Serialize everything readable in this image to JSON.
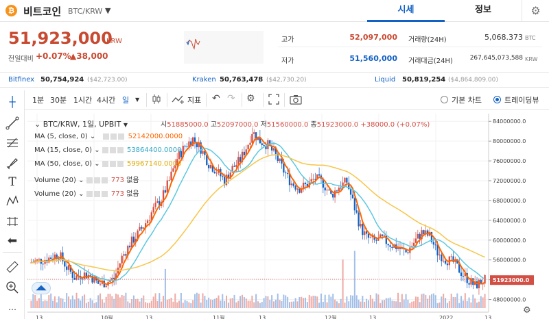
{
  "header": {
    "coin_logo": "₿",
    "coin_name": "비트코인",
    "coin_pair": "BTC/KRW",
    "caret_icon": "caret-down-icon",
    "tabs": [
      {
        "label": "시세"
      },
      {
        "label": "정보"
      }
    ],
    "settings_icon": "gear-icon"
  },
  "price": {
    "current": "51,923,000",
    "unit": "KRW",
    "change_label": "전일대비",
    "change_pct": "+0.07%",
    "change_amt": "▲38,000"
  },
  "stats": {
    "high_label": "고가",
    "high": "52,097,000",
    "low_label": "저가",
    "low": "51,560,000",
    "vol_label": "거래량(24H)",
    "vol": "5,068.373",
    "vol_unit": "BTC",
    "amt_label": "거래대금(24H)",
    "amt": "267,645,073,588",
    "amt_unit": "KRW"
  },
  "exchanges": [
    {
      "name": "Bitfinex",
      "value": "50,754,924",
      "usd": "($42,723.00)"
    },
    {
      "name": "Kraken",
      "value": "50,763,478",
      "usd": "($42,730.20)"
    },
    {
      "name": "Liquid",
      "value": "50,819,254",
      "usd": "($4,864,809.00)"
    }
  ],
  "toolbar": {
    "intervals": [
      "1분",
      "30분",
      "1시간",
      "4시간",
      "일"
    ],
    "indicator_label": "지표",
    "basic_chart": "기본 차트",
    "tradingview": "트레이딩뷰"
  },
  "legend": {
    "title": "BTC/KRW, 1일, UPBIT",
    "o_label": "시",
    "o": "51885000.0",
    "h_label": "고",
    "h": "52097000.0",
    "l_label": "저",
    "l": "51560000.0",
    "c_label": "종",
    "c": "51923000.0",
    "chg": "+38000.0 (+0.07%)",
    "ma5_label": "MA (5, close, 0)",
    "ma5": "52142000.0000",
    "ma15_label": "MA (15, close, 0)",
    "ma15": "53864400.0000",
    "ma50_label": "MA (50, close, 0)",
    "ma50": "59967140.0000",
    "vol1_label": "Volume (20)",
    "vol1": "773",
    "vol1_b": "없음",
    "vol2_label": "Volume (20)",
    "vol2": "773",
    "vol2_b": "없음"
  },
  "chart_data": {
    "type": "candlestick",
    "price_axis": [
      "84000000.0",
      "80000000.0",
      "76000000.0",
      "72000000.0",
      "68000000.0",
      "64000000.0",
      "60000000.0",
      "56000000.0",
      "52000000.0",
      "48000000.0"
    ],
    "last_price_label": "51923000.0",
    "x_labels": [
      "13",
      "10월",
      "13",
      "11월",
      "13",
      "12월",
      "13",
      "2022",
      "13"
    ],
    "ylim": [
      46000000,
      85000000
    ],
    "colors": {
      "up": "#d24f45",
      "down": "#1261c4",
      "ma5": "#ff6600",
      "ma15": "#5bc8e0",
      "ma50": "#f7c548"
    }
  }
}
